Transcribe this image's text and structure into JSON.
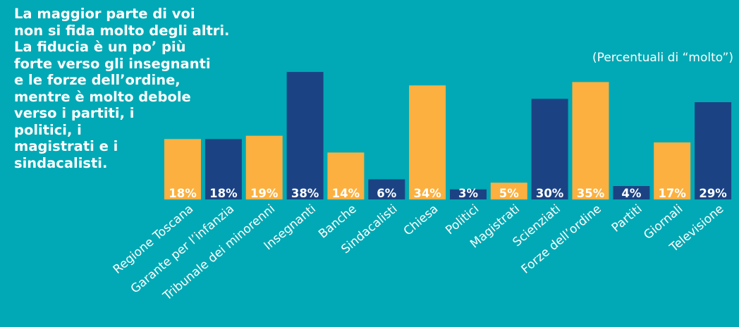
{
  "intro": {
    "lines": [
      "La maggior parte di voi",
      "non si fida molto degli altri.",
      "La fiducia è un po’ più",
      "forte verso gli insegnanti",
      "e le forze dell’ordine,",
      "mentre è molto debole",
      "verso i partiti, i",
      "politici, i",
      "magistrati e i",
      "sindacalisti."
    ]
  },
  "note": "(Percentuali di “molto”)",
  "colors": {
    "background": "#00A9B5",
    "yellow": "#FBB040",
    "blue": "#1B4384"
  },
  "chart_data": {
    "type": "bar",
    "categories": [
      "Regione Toscana",
      "Garante per l’infanzia",
      "Tribunale dei minorenni",
      "Insegnanti",
      "Banche",
      "Sindacalisti",
      "Chiesa",
      "Politici",
      "Magistrati",
      "Scienziati",
      "Forze dell’ordine",
      "Partiti",
      "Giornali",
      "Televisione"
    ],
    "values": [
      18,
      18,
      19,
      38,
      14,
      6,
      34,
      3,
      5,
      30,
      35,
      4,
      17,
      29
    ],
    "value_labels": [
      "18%",
      "18%",
      "19%",
      "38%",
      "14%",
      "6%",
      "34%",
      "3%",
      "5%",
      "30%",
      "35%",
      "4%",
      "17%",
      "29%"
    ],
    "bar_colors": [
      "yellow",
      "blue",
      "yellow",
      "blue",
      "yellow",
      "blue",
      "yellow",
      "blue",
      "yellow",
      "blue",
      "yellow",
      "blue",
      "yellow",
      "blue"
    ],
    "ylim": [
      0,
      40
    ],
    "grid": false,
    "legend": "none"
  }
}
